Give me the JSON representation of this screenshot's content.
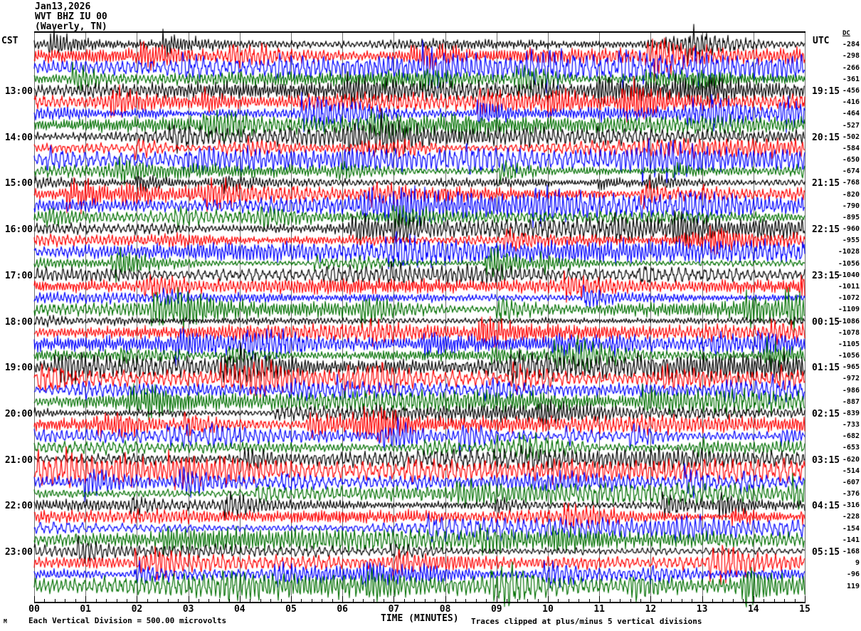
{
  "header": {
    "date": "Jan13,2026",
    "station": "WVT BHZ IU 00",
    "location": "(Waverly, TN)",
    "left_tz": "CST",
    "right_tz": "UTC",
    "dc_label": "DC"
  },
  "footer": {
    "scale_note": "Each Vertical Division =  500.00 microvolts",
    "axis_title": "TIME (MINUTES)",
    "clip_note": "Traces clipped at plus/minus 5 vertical divisions",
    "watermark": "M"
  },
  "x_axis": {
    "ticks": [
      "00",
      "01",
      "02",
      "03",
      "04",
      "05",
      "06",
      "07",
      "08",
      "09",
      "10",
      "11",
      "12",
      "13",
      "14",
      "15"
    ],
    "minor_per_major": 5
  },
  "left_time_labels": [
    {
      "row": 4,
      "label": "13:00"
    },
    {
      "row": 8,
      "label": "14:00"
    },
    {
      "row": 12,
      "label": "15:00"
    },
    {
      "row": 16,
      "label": "16:00"
    },
    {
      "row": 20,
      "label": "17:00"
    },
    {
      "row": 24,
      "label": "18:00"
    },
    {
      "row": 28,
      "label": "19:00"
    },
    {
      "row": 32,
      "label": "20:00"
    },
    {
      "row": 36,
      "label": "21:00"
    },
    {
      "row": 40,
      "label": "22:00"
    },
    {
      "row": 44,
      "label": "23:00"
    }
  ],
  "right_time_labels": [
    {
      "row": 4,
      "label": "19:15"
    },
    {
      "row": 8,
      "label": "20:15"
    },
    {
      "row": 12,
      "label": "21:15"
    },
    {
      "row": 16,
      "label": "22:15"
    },
    {
      "row": 20,
      "label": "23:15"
    },
    {
      "row": 24,
      "label": "00:15"
    },
    {
      "row": 28,
      "label": "01:15"
    },
    {
      "row": 32,
      "label": "02:15"
    },
    {
      "row": 36,
      "label": "03:15"
    },
    {
      "row": 40,
      "label": "04:15"
    },
    {
      "row": 44,
      "label": "05:15"
    }
  ],
  "chart_data": {
    "type": "line",
    "subtype": "helicorder-seismogram",
    "title": "WVT BHZ IU 00 (Waverly, TN) Jan13,2026",
    "xlabel": "TIME (MINUTES)",
    "x_range": [
      0,
      15
    ],
    "x_tick_labels": [
      "00",
      "01",
      "02",
      "03",
      "04",
      "05",
      "06",
      "07",
      "08",
      "09",
      "10",
      "11",
      "12",
      "13",
      "14",
      "15"
    ],
    "minutes_per_row": 15,
    "rows_per_hour": 4,
    "grid": "vertical minute gridlines",
    "volts_per_division": "500.00 microvolts",
    "clip_limit": "plus/minus 5 vertical divisions",
    "trace_colors": [
      "#000000",
      "#ff0000",
      "#0000ff",
      "#007000"
    ],
    "gridline_color": "#707070",
    "rows": [
      {
        "cst": "12:00",
        "dc": -284
      },
      {
        "cst": "12:15",
        "dc": -298
      },
      {
        "cst": "12:30",
        "dc": -266
      },
      {
        "cst": "12:45",
        "dc": -361
      },
      {
        "cst": "13:00",
        "dc": -456
      },
      {
        "cst": "13:15",
        "dc": -416
      },
      {
        "cst": "13:30",
        "dc": -464
      },
      {
        "cst": "13:45",
        "dc": -527
      },
      {
        "cst": "14:00",
        "dc": -502
      },
      {
        "cst": "14:15",
        "dc": -584
      },
      {
        "cst": "14:30",
        "dc": -650
      },
      {
        "cst": "14:45",
        "dc": -674
      },
      {
        "cst": "15:00",
        "dc": -768
      },
      {
        "cst": "15:15",
        "dc": -820
      },
      {
        "cst": "15:30",
        "dc": -790
      },
      {
        "cst": "15:45",
        "dc": -895
      },
      {
        "cst": "16:00",
        "dc": -960
      },
      {
        "cst": "16:15",
        "dc": -955
      },
      {
        "cst": "16:30",
        "dc": -1028
      },
      {
        "cst": "16:45",
        "dc": -1056
      },
      {
        "cst": "17:00",
        "dc": -1040
      },
      {
        "cst": "17:15",
        "dc": -1011
      },
      {
        "cst": "17:30",
        "dc": -1072
      },
      {
        "cst": "17:45",
        "dc": -1109
      },
      {
        "cst": "18:00",
        "dc": -1086
      },
      {
        "cst": "18:15",
        "dc": -1078
      },
      {
        "cst": "18:30",
        "dc": -1105
      },
      {
        "cst": "18:45",
        "dc": -1056
      },
      {
        "cst": "19:00",
        "dc": -965
      },
      {
        "cst": "19:15",
        "dc": -972
      },
      {
        "cst": "19:30",
        "dc": -986
      },
      {
        "cst": "19:45",
        "dc": -887
      },
      {
        "cst": "20:00",
        "dc": -839
      },
      {
        "cst": "20:15",
        "dc": -733
      },
      {
        "cst": "20:30",
        "dc": -682
      },
      {
        "cst": "20:45",
        "dc": -653
      },
      {
        "cst": "21:00",
        "dc": -620
      },
      {
        "cst": "21:15",
        "dc": -514
      },
      {
        "cst": "21:30",
        "dc": -607
      },
      {
        "cst": "21:45",
        "dc": -376
      },
      {
        "cst": "22:00",
        "dc": -316
      },
      {
        "cst": "22:15",
        "dc": -228
      },
      {
        "cst": "22:30",
        "dc": -154
      },
      {
        "cst": "22:45",
        "dc": -141
      },
      {
        "cst": "23:00",
        "dc": -168
      },
      {
        "cst": "23:15",
        "dc": 9
      },
      {
        "cst": "23:30",
        "dc": -96
      },
      {
        "cst": "23:45",
        "dc": 119
      }
    ]
  }
}
